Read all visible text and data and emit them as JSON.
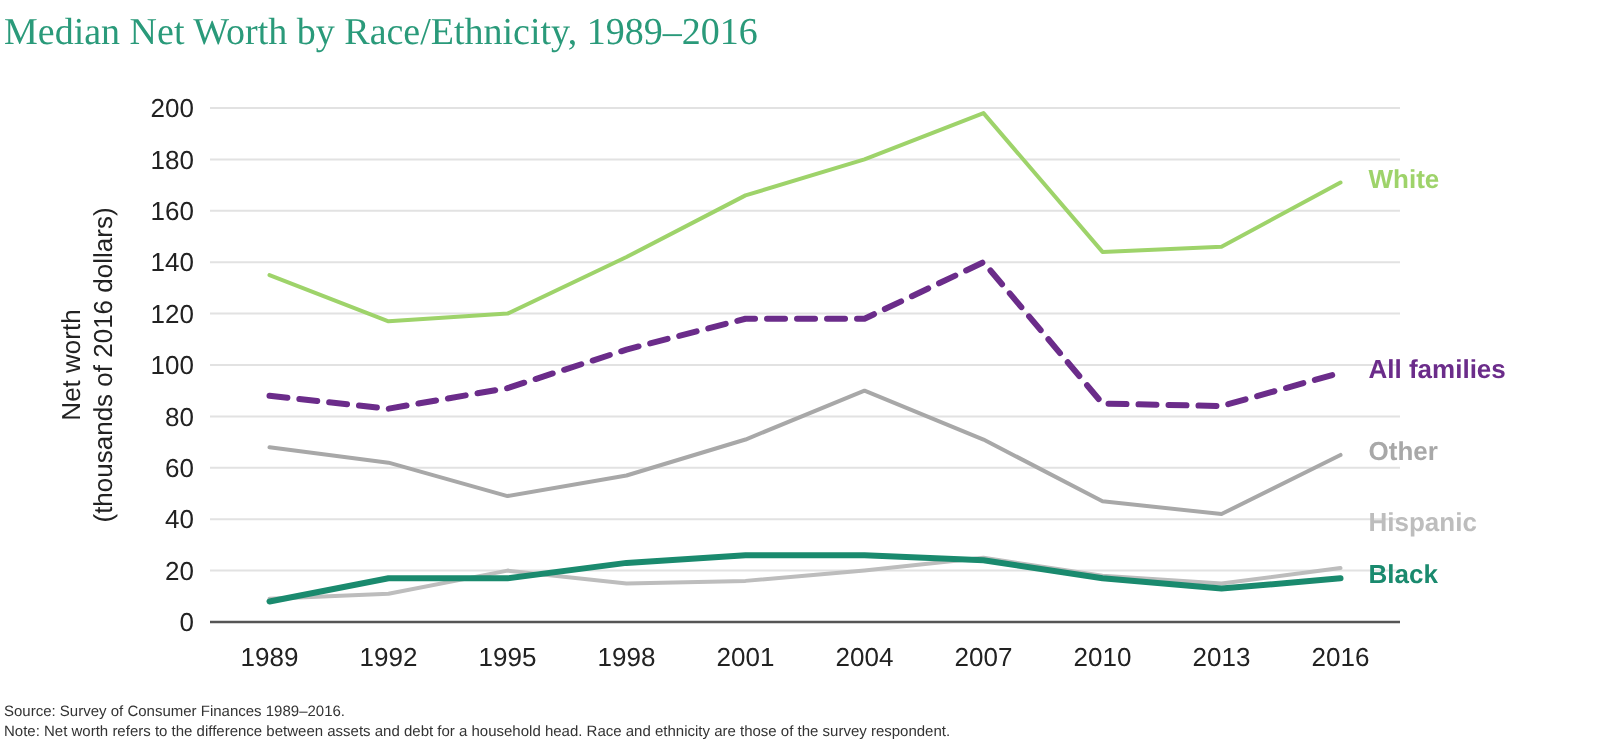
{
  "chart_data": {
    "type": "line",
    "title": "Median Net Worth by Race/Ethnicity, 1989–2016",
    "ylabel": "Net worth\n(thousands of 2016 dollars)",
    "x": [
      1989,
      1992,
      1995,
      1998,
      2001,
      2004,
      2007,
      2010,
      2013,
      2016
    ],
    "xlim": [
      1987.5,
      2017.5
    ],
    "xticks": [
      1989,
      1992,
      1995,
      1998,
      2001,
      2004,
      2007,
      2010,
      2013,
      2016
    ],
    "ylim": [
      0,
      200
    ],
    "yticks": [
      0,
      20,
      40,
      60,
      80,
      100,
      120,
      140,
      160,
      180,
      200
    ],
    "grid": "y",
    "legend": false,
    "marker": "none",
    "series": [
      {
        "name": "White",
        "color": "#9ed36a",
        "values": [
          135,
          117,
          120,
          142,
          166,
          180,
          198,
          144,
          146,
          171
        ]
      },
      {
        "name": "All families",
        "color": "#6b2c8a",
        "line_style": "dashed",
        "values": [
          88,
          83,
          91,
          106,
          118,
          118,
          140,
          85,
          84,
          97
        ]
      },
      {
        "name": "Other",
        "color": "#a8a8a8",
        "values": [
          68,
          62,
          49,
          57,
          71,
          90,
          71,
          47,
          42,
          65
        ]
      },
      {
        "name": "Hispanic",
        "color": "#bdbdbd",
        "values": [
          9,
          11,
          20,
          15,
          16,
          20,
          25,
          18,
          15,
          21
        ]
      },
      {
        "name": "Black",
        "color": "#1a8a6e",
        "values": [
          8,
          17,
          17,
          23,
          26,
          26,
          24,
          17,
          13,
          17
        ]
      }
    ],
    "annotations": [
      "Source: Survey of Consumer Finances 1989–2016.",
      "Note: Net worth refers to the difference between assets and debt for a household head. Race and ethnicity are those of the survey respondent."
    ]
  }
}
